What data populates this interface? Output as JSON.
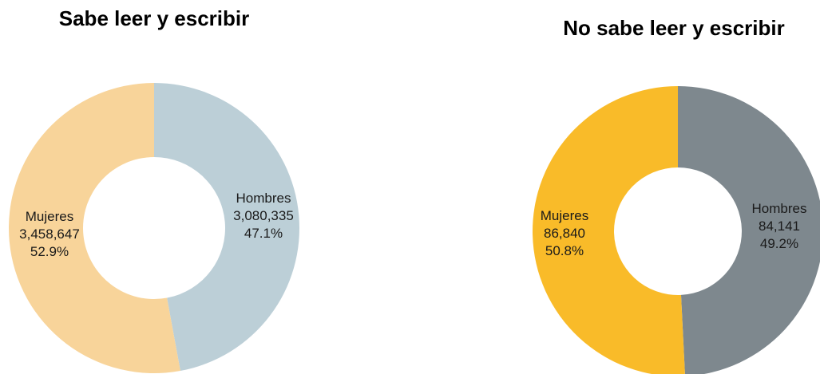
{
  "chart_data": [
    {
      "type": "pie",
      "variant": "donut",
      "title": "Sabe leer y escribir",
      "slices": [
        {
          "name": "Hombres",
          "value": 3080335,
          "value_label": "3,080,335",
          "percent_label": "47.1%",
          "percent": 47.1,
          "color": "#bccfd7"
        },
        {
          "name": "Mujeres",
          "value": 3458647,
          "value_label": "3,458,647",
          "percent_label": "52.9%",
          "percent": 52.9,
          "color": "#f8d49a"
        }
      ]
    },
    {
      "type": "pie",
      "variant": "donut",
      "title": "No sabe leer y escribir",
      "slices": [
        {
          "name": "Hombres",
          "value": 84141,
          "value_label": "84,141",
          "percent_label": "49.2%",
          "percent": 49.2,
          "color": "#7e888e"
        },
        {
          "name": "Mujeres",
          "value": 86840,
          "value_label": "86,840",
          "percent_label": "50.8%",
          "percent": 50.8,
          "color": "#f9bb29"
        }
      ]
    }
  ]
}
